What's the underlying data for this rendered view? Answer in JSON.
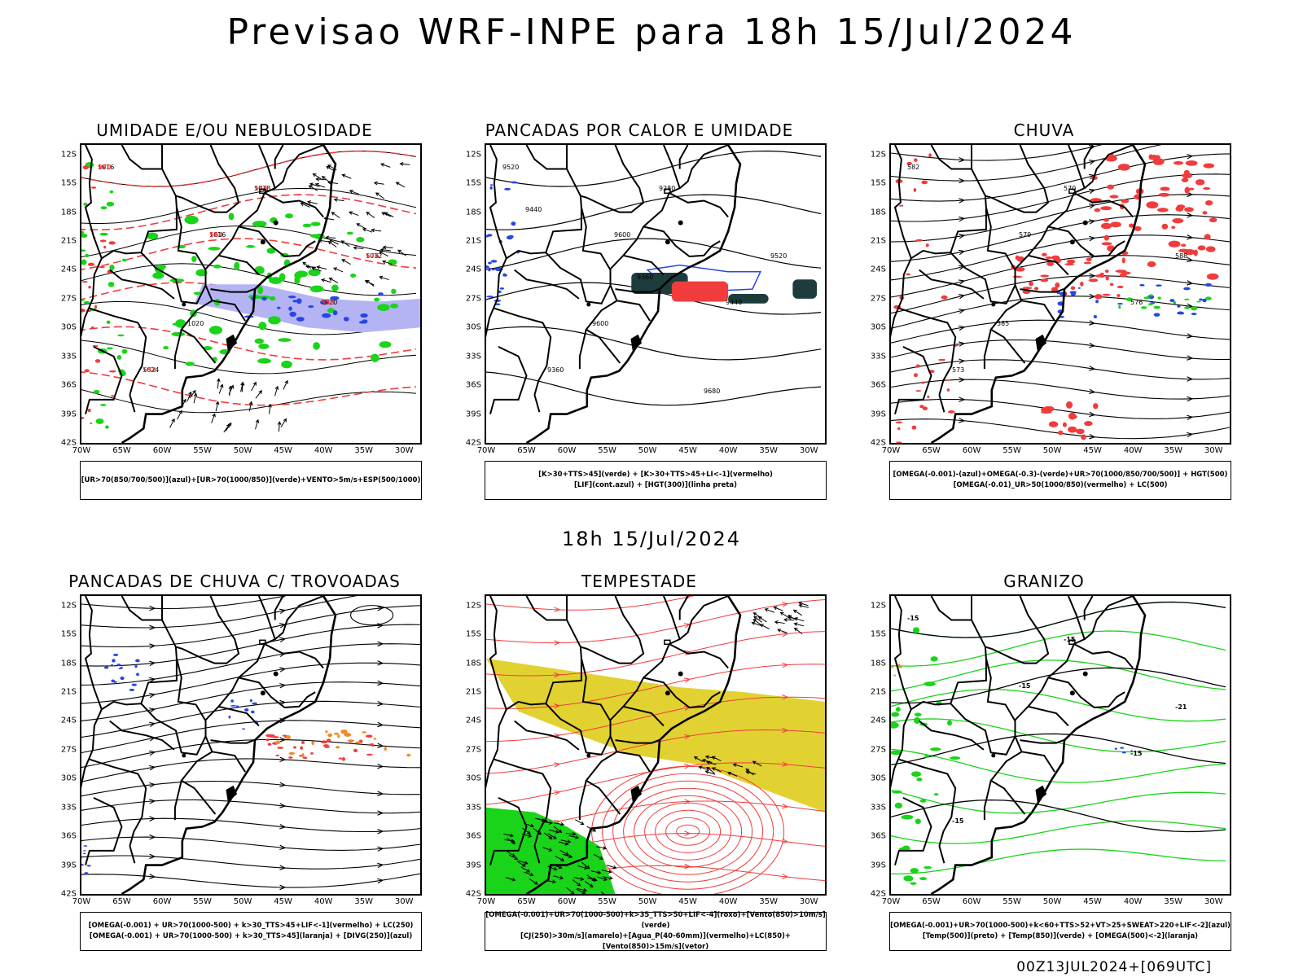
{
  "header": {
    "title": "Previsao WRF-INPE  para 18h 15/Jul/2024"
  },
  "middle": {
    "subtitle": "18h 15/Jul/2024"
  },
  "footer": {
    "run": "00Z13JUL2024+[069UTC]"
  },
  "axes": {
    "lat_labels": [
      "12S",
      "15S",
      "18S",
      "21S",
      "24S",
      "27S",
      "30S",
      "33S",
      "36S",
      "39S",
      "42S"
    ],
    "lon_labels": [
      "70W",
      "65W",
      "60W",
      "55W",
      "50W",
      "45W",
      "40W",
      "35W",
      "30W"
    ]
  },
  "panels": [
    {
      "title": "UMIDADE E/OU NEBULOSIDADE",
      "legend": [
        "[UR>70(850/700/500)](azul)+[UR>70(1000/850)](verde)+VENTO>5m/s+ESP(500/1000)"
      ],
      "contour_labels": [
        "1016",
        "1016",
        "1020",
        "1024",
        "1028",
        "1032",
        "1020",
        "570",
        "564",
        "558",
        "552",
        "546",
        "576"
      ]
    },
    {
      "title": "PANCADAS POR CALOR E UMIDADE",
      "legend": [
        "[K>30+TTS>45](verde) + [K>30+TTS>45+LI<-1](vermelho)",
        "[LIF](cont.azul) + [HGT(300)](linha preta)"
      ],
      "contour_labels": [
        "9520",
        "9600",
        "9440",
        "9360",
        "9280",
        "9520",
        "9600",
        "9680",
        "9440",
        "9360"
      ]
    },
    {
      "title": "CHUVA",
      "legend": [
        "[OMEGA(-0.001)-(azul)+OMEGA(-0.3)-(verde)+UR>70(1000/850/700/500)] + HGT(500)",
        "[OMEGA(-0.01)_UR>50(1000/850)(vermelho) + LC(500)"
      ],
      "contour_labels": [
        "582",
        "579",
        "576",
        "573",
        "570",
        "588",
        "585"
      ]
    },
    {
      "title": "PANCADAS DE CHUVA C/ TROVOADAS",
      "legend": [
        "[OMEGA(-0.001) + UR>70(1000-500) + k>30_TTS>45+LIF<-1](vermelho) + LC(250)",
        "[OMEGA(-0.001) + UR>70(1000-500) + k>30_TTS>45](laranja) + [DIVG(250)](azul)"
      ],
      "contour_labels": []
    },
    {
      "title": "TEMPESTADE",
      "legend": [
        "[OMEGA(-0.001)+UR>70(1000-500)+k>35_TTS>50+LIF<-4](roxo)+[Vento(850)>10m/s](verde)",
        "[CJ(250)>30m/s](amarelo)+[Agua_P(40-60mm)](vermelho)+LC(850)+[Vento(850)>15m/s](vetor)"
      ],
      "contour_labels": []
    },
    {
      "title": "GRANIZO",
      "legend": [
        "[OMEGA(-0.001)+UR>70(1000-500)+k<60+TTS>52+VT>25+SWEAT>220+LIF<-2](azul)",
        "[Temp(500)](preto) + [Temp(850)](verde) + [OMEGA(500)<-2](laranja)"
      ],
      "contour_labels": [
        "-15",
        "-15",
        "-15",
        "-15",
        "-15",
        "-21"
      ]
    }
  ],
  "colors": {
    "green": "#19d419",
    "red": "#f03c3c",
    "blue": "#2846e6",
    "lavender": "#b4b4f5",
    "yellow": "#e1d232",
    "darkteal": "#1e3c3c",
    "orange": "#f08c28"
  }
}
